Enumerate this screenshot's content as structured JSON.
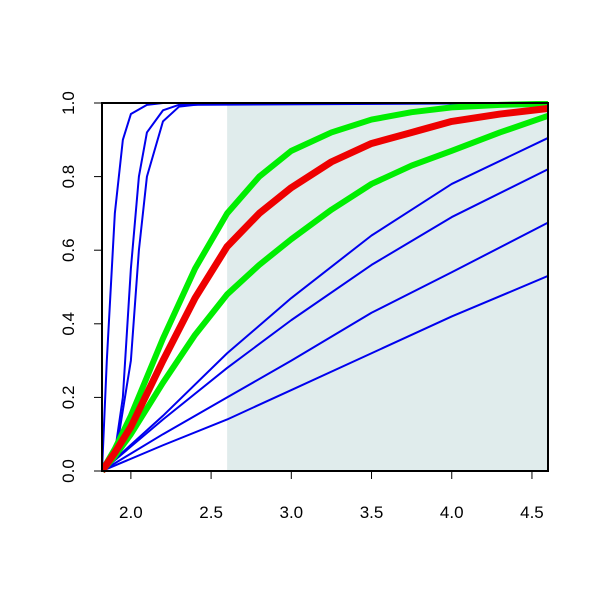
{
  "chart_data": {
    "type": "line",
    "xlim": [
      1.82,
      4.6
    ],
    "ylim": [
      0,
      1
    ],
    "xticks": [
      {
        "value": 2,
        "label": "2.0"
      },
      {
        "value": 2.5,
        "label": "2.5"
      },
      {
        "value": 3,
        "label": "3.0"
      },
      {
        "value": 3.5,
        "label": "3.5"
      },
      {
        "value": 4,
        "label": "4.0"
      },
      {
        "value": 4.5,
        "label": "4.5"
      }
    ],
    "yticks": [
      {
        "value": 0,
        "label": "0.0"
      },
      {
        "value": 0.2,
        "label": "0.2"
      },
      {
        "value": 0.4,
        "label": "0.4"
      },
      {
        "value": 0.6,
        "label": "0.6"
      },
      {
        "value": 0.8,
        "label": "0.8"
      },
      {
        "value": 1,
        "label": "1.0"
      }
    ],
    "shade_from": 2.6,
    "shade_color": "#e0ecec",
    "series": [
      {
        "color": "#0000ee",
        "width": 2,
        "x": [
          1.82,
          1.85,
          1.9,
          1.95,
          2.0,
          2.1,
          2.2,
          4.6
        ],
        "values": [
          0,
          0.3,
          0.7,
          0.9,
          0.97,
          0.995,
          1,
          1
        ]
      },
      {
        "color": "#0000ee",
        "width": 2,
        "x": [
          1.82,
          1.9,
          1.95,
          2.0,
          2.05,
          2.1,
          2.2,
          2.3,
          4.6
        ],
        "values": [
          0,
          0.05,
          0.2,
          0.55,
          0.8,
          0.92,
          0.98,
          0.995,
          1
        ]
      },
      {
        "color": "#0000ee",
        "width": 2,
        "x": [
          1.82,
          1.9,
          2.0,
          2.05,
          2.1,
          2.2,
          2.3,
          2.5,
          4.6
        ],
        "values": [
          0,
          0.03,
          0.3,
          0.6,
          0.8,
          0.95,
          0.99,
          1,
          1
        ]
      },
      {
        "color": "#0000ee",
        "width": 2,
        "x": [
          1.82,
          2.2,
          2.6,
          3.0,
          3.5,
          4.0,
          4.6
        ],
        "values": [
          0,
          0.15,
          0.32,
          0.47,
          0.64,
          0.78,
          0.905
        ]
      },
      {
        "color": "#0000ee",
        "width": 2,
        "x": [
          1.82,
          2.2,
          2.6,
          3.0,
          3.5,
          4.0,
          4.6
        ],
        "values": [
          0,
          0.14,
          0.28,
          0.41,
          0.56,
          0.69,
          0.82
        ]
      },
      {
        "color": "#0000ee",
        "width": 2,
        "x": [
          1.82,
          2.2,
          2.6,
          3.0,
          3.5,
          4.0,
          4.6
        ],
        "values": [
          0,
          0.1,
          0.2,
          0.3,
          0.43,
          0.54,
          0.675
        ]
      },
      {
        "color": "#0000ee",
        "width": 2,
        "x": [
          1.82,
          2.2,
          2.6,
          3.0,
          3.5,
          4.0,
          4.6
        ],
        "values": [
          0,
          0.07,
          0.14,
          0.22,
          0.32,
          0.42,
          0.53
        ]
      },
      {
        "color": "#00ee00",
        "width": 6,
        "x": [
          1.82,
          1.9,
          2.0,
          2.2,
          2.4,
          2.6,
          2.8,
          3.0,
          3.25,
          3.5,
          3.75,
          4.0,
          4.3,
          4.6
        ],
        "values": [
          0,
          0.06,
          0.15,
          0.36,
          0.55,
          0.7,
          0.8,
          0.87,
          0.92,
          0.955,
          0.975,
          0.988,
          0.995,
          0.998
        ]
      },
      {
        "color": "#00ee00",
        "width": 6,
        "x": [
          1.82,
          1.9,
          2.0,
          2.2,
          2.4,
          2.6,
          2.8,
          3.0,
          3.25,
          3.5,
          3.75,
          4.0,
          4.3,
          4.6
        ],
        "values": [
          0,
          0.04,
          0.1,
          0.24,
          0.37,
          0.48,
          0.56,
          0.63,
          0.71,
          0.78,
          0.83,
          0.87,
          0.92,
          0.965
        ]
      },
      {
        "color": "#ee0000",
        "width": 7,
        "x": [
          1.82,
          1.9,
          2.0,
          2.2,
          2.4,
          2.6,
          2.8,
          3.0,
          3.25,
          3.5,
          3.75,
          4.0,
          4.3,
          4.6
        ],
        "values": [
          0,
          0.05,
          0.12,
          0.3,
          0.47,
          0.61,
          0.7,
          0.77,
          0.84,
          0.89,
          0.92,
          0.95,
          0.97,
          0.985
        ]
      }
    ]
  }
}
